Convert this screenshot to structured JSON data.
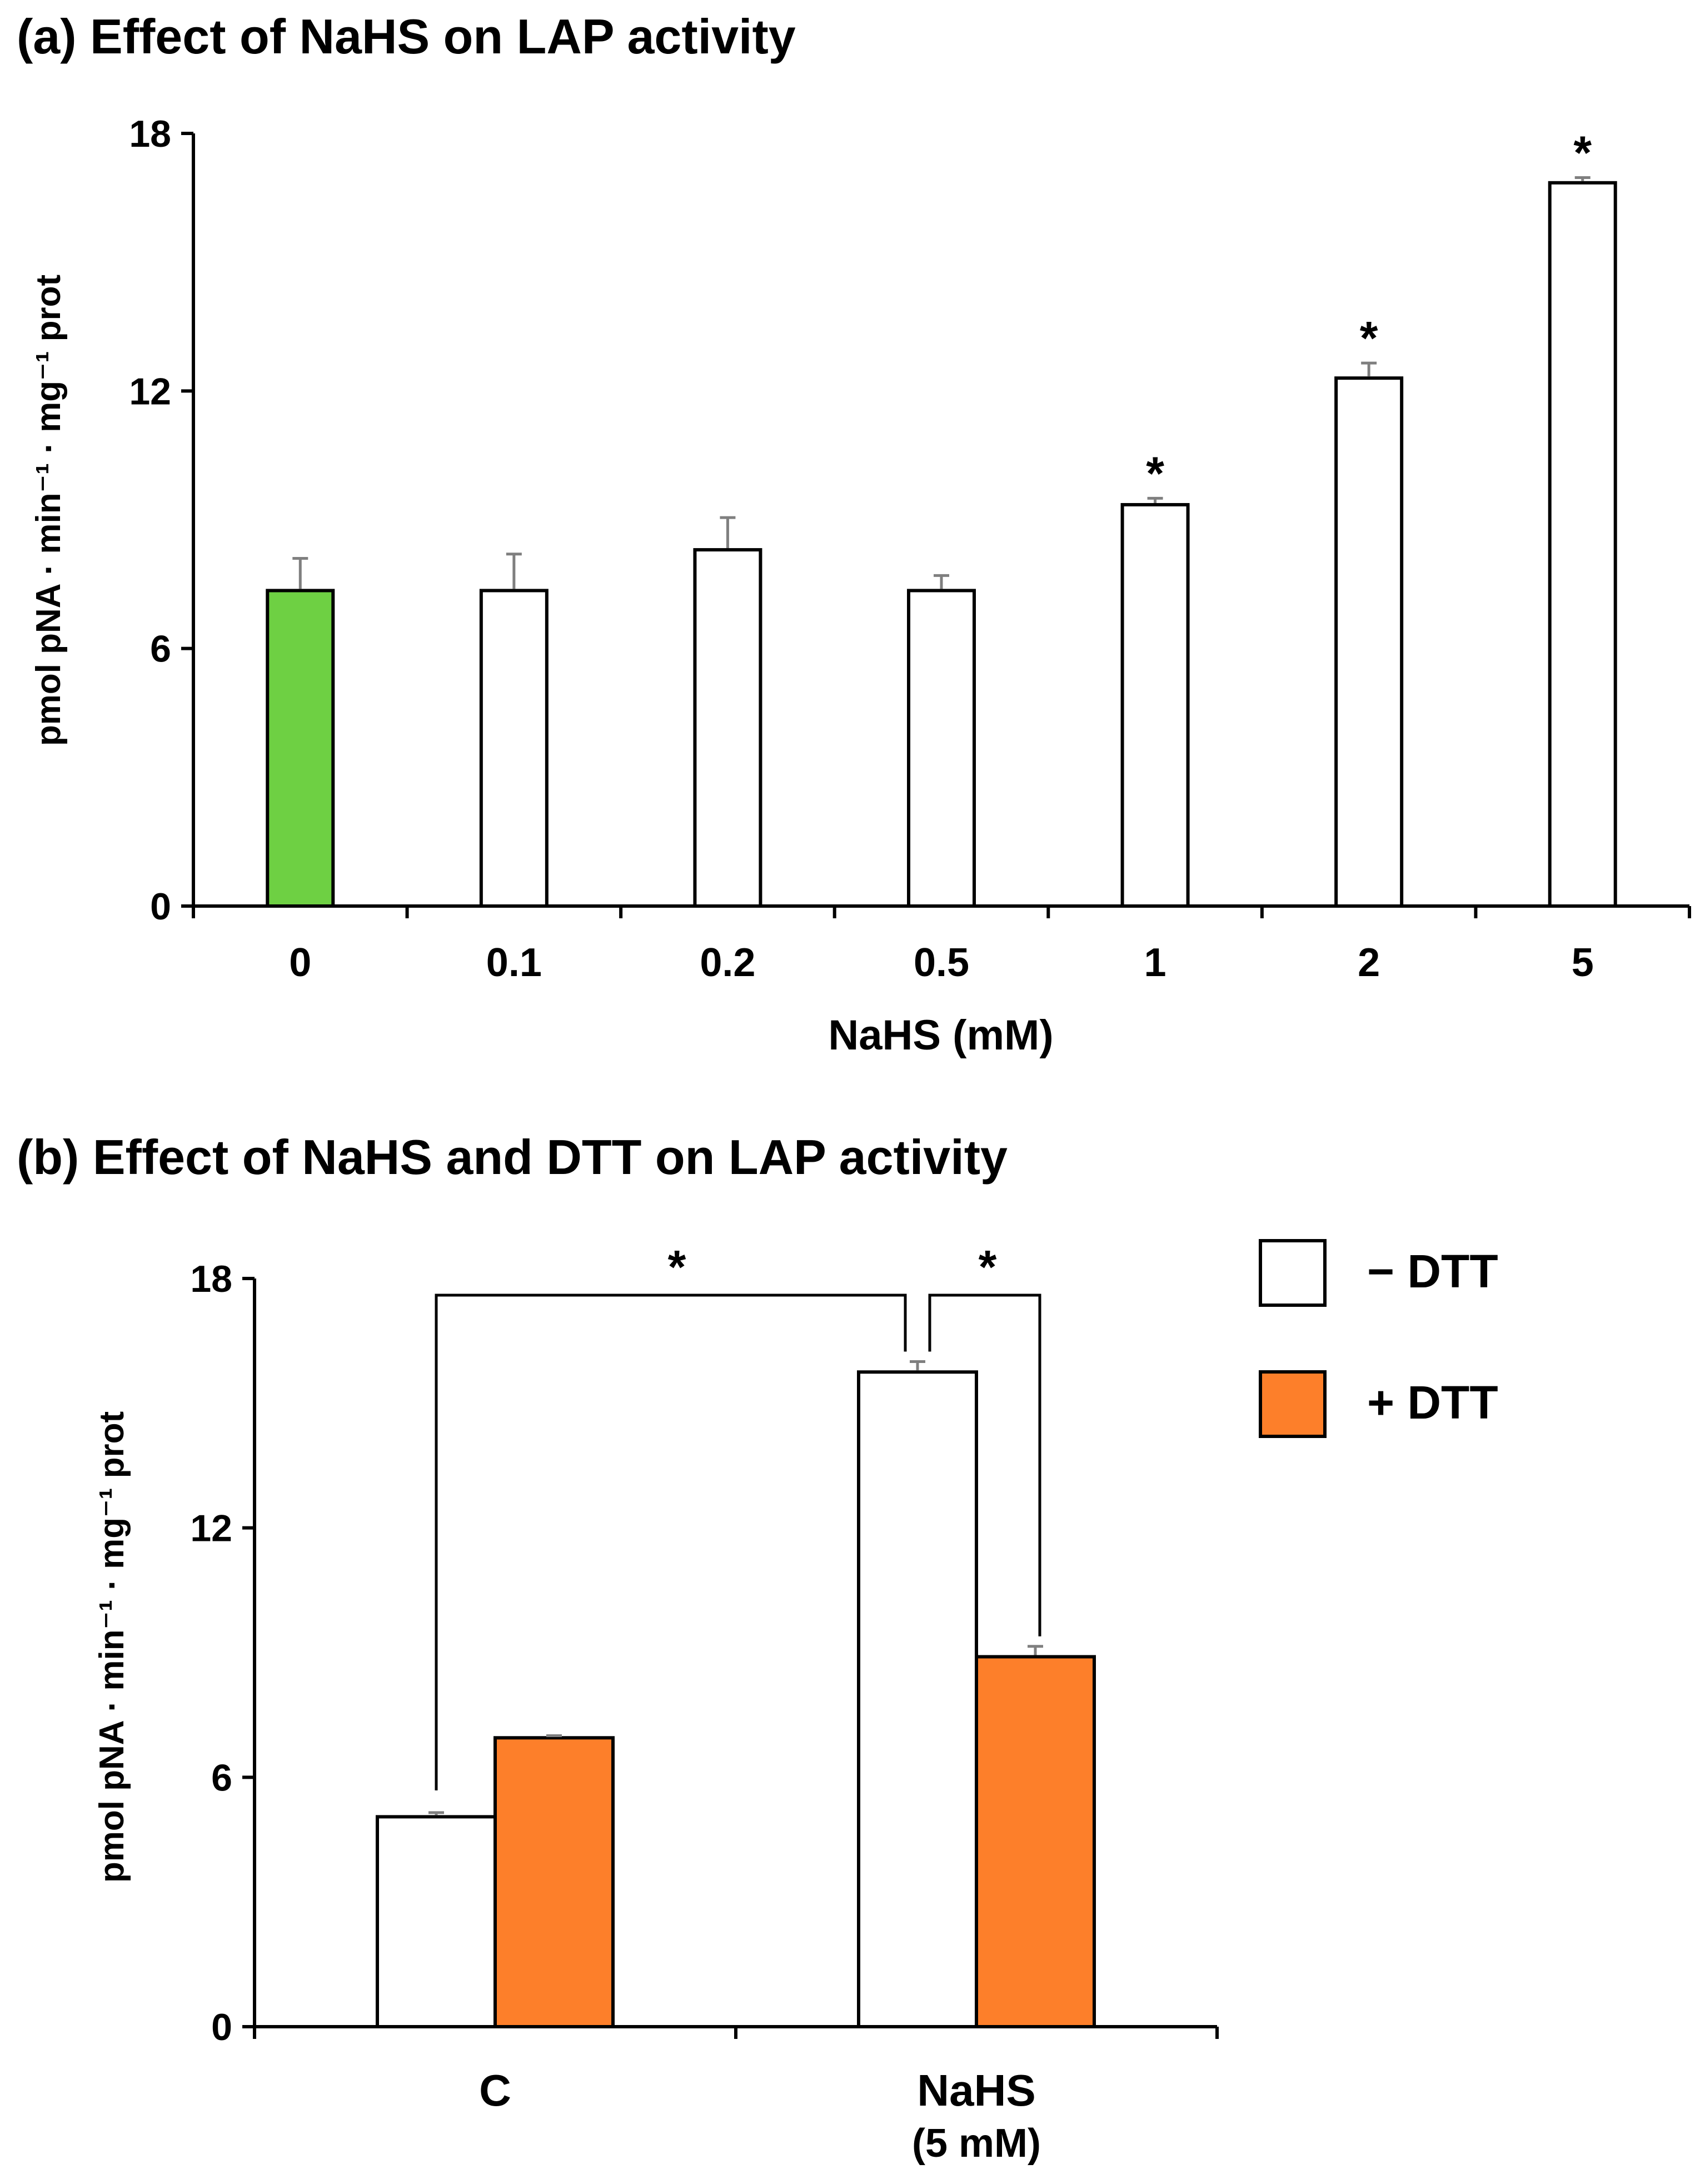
{
  "chart_data": [
    {
      "type": "bar",
      "title": "(a) Effect of NaHS on LAP activity",
      "xlabel": "NaHS (mM)",
      "ylabel": "pmol pNA · min⁻¹ · mg⁻¹ prot",
      "ylim": [
        0,
        18
      ],
      "yticks": [
        "0",
        "6",
        "12",
        "18"
      ],
      "categories": [
        "0",
        "0.1",
        "0.2",
        "0.5",
        "1",
        "2",
        "5"
      ],
      "values": [
        7.35,
        7.35,
        8.3,
        7.35,
        9.35,
        12.3,
        16.85
      ],
      "errors": [
        0.75,
        0.85,
        0.75,
        0.35,
        0.15,
        0.35,
        0.12
      ],
      "significant": [
        false,
        false,
        false,
        false,
        true,
        true,
        true
      ],
      "significance_marker": "*",
      "colors": [
        "#6ed043",
        "#ffffff",
        "#ffffff",
        "#ffffff",
        "#ffffff",
        "#ffffff",
        "#ffffff"
      ]
    },
    {
      "type": "bar",
      "title": "(b) Effect of NaHS and DTT on LAP activity",
      "xlabel": "",
      "ylabel": "pmol pNA · min⁻¹ · mg⁻¹ prot",
      "ylim": [
        0,
        18
      ],
      "yticks": [
        "0",
        "6",
        "12",
        "18"
      ],
      "categories": [
        "C",
        "NaHS"
      ],
      "category_sublabels": [
        "",
        "(5 mM)"
      ],
      "series": [
        {
          "name": "− DTT",
          "color": "#ffffff",
          "values": [
            5.05,
            15.75
          ],
          "errors": [
            0.1,
            0.25
          ]
        },
        {
          "name": "+ DTT",
          "color": "#fd7f2a",
          "values": [
            6.95,
            8.9
          ],
          "errors": [
            0.05,
            0.25
          ]
        }
      ],
      "significance": [
        {
          "label": "*",
          "from": "C / − DTT",
          "to": "NaHS / − DTT"
        },
        {
          "label": "*",
          "from": "NaHS / − DTT",
          "to": "NaHS / + DTT"
        }
      ],
      "legend_position": "top-right"
    }
  ]
}
